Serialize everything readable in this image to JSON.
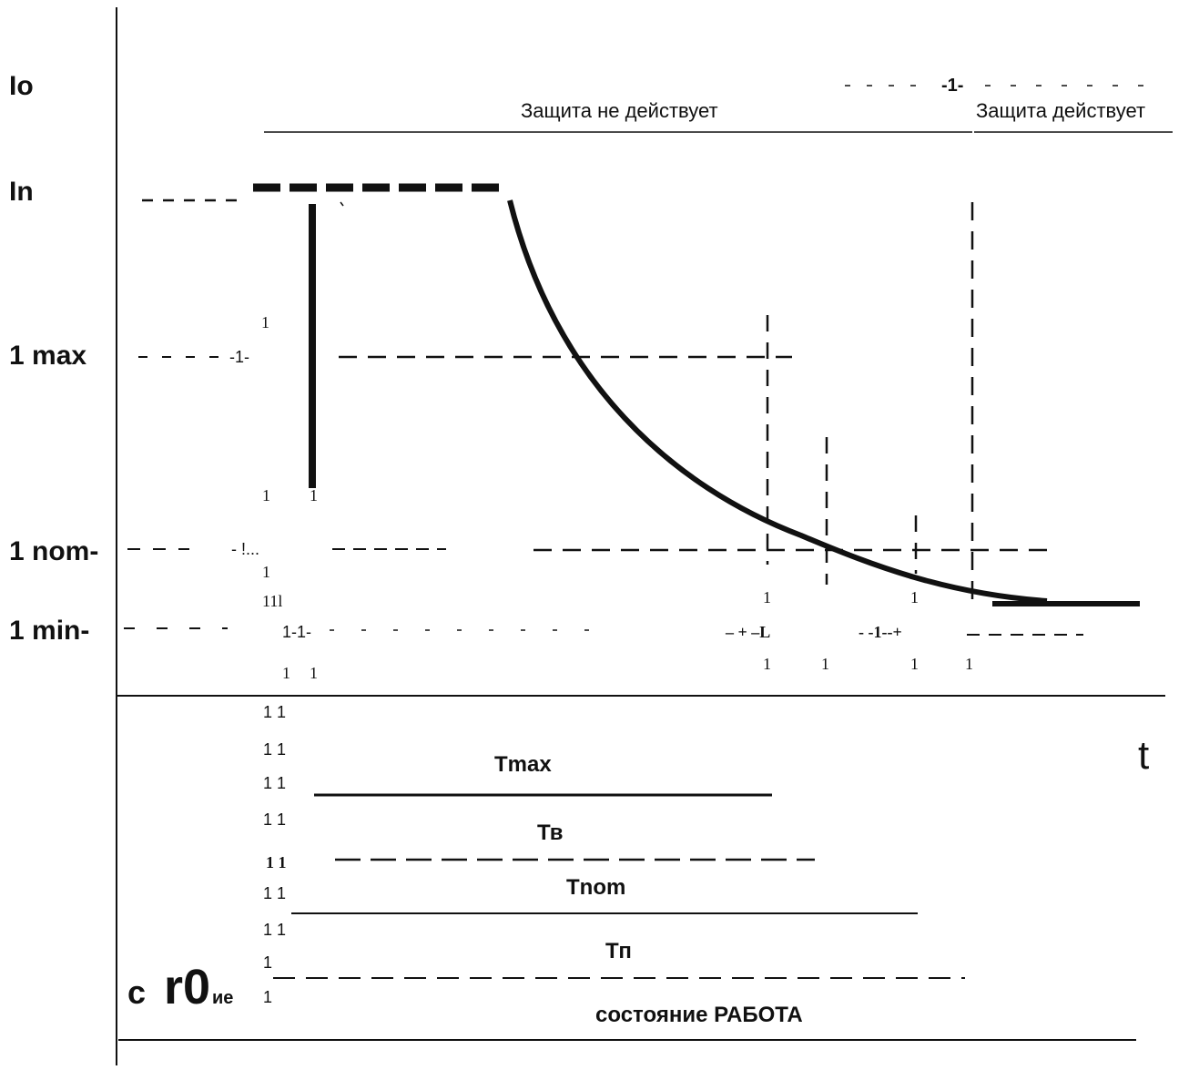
{
  "axes": {
    "y_labels": {
      "io": "Io",
      "in": "In",
      "imax": "1 max",
      "inom": "1 nom-",
      "imin": "1 min-"
    },
    "t_label": "t"
  },
  "zones": {
    "inactive": "Защита не действует",
    "active": "Защита действует"
  },
  "periods": {
    "tmax": "Tmax",
    "tv": "Тв",
    "tnom": "Tnom",
    "tp": "Тп",
    "state": "состояние РАБОТА"
  },
  "fragments": {
    "io_dash": "-1-",
    "imax_dash": "-1-",
    "inom_dash": "- !...",
    "imin_marks": "1-1-",
    "imin_right_1": "– + –L",
    "imin_right_2": "- -1--+",
    "bottom_left_a": "c",
    "bottom_left_b": "r0",
    "bottom_left_c": "ие",
    "tick_1": "1",
    "tick_11": "1 1",
    "tick_111": "11l",
    "tick_big": "1 1"
  }
}
